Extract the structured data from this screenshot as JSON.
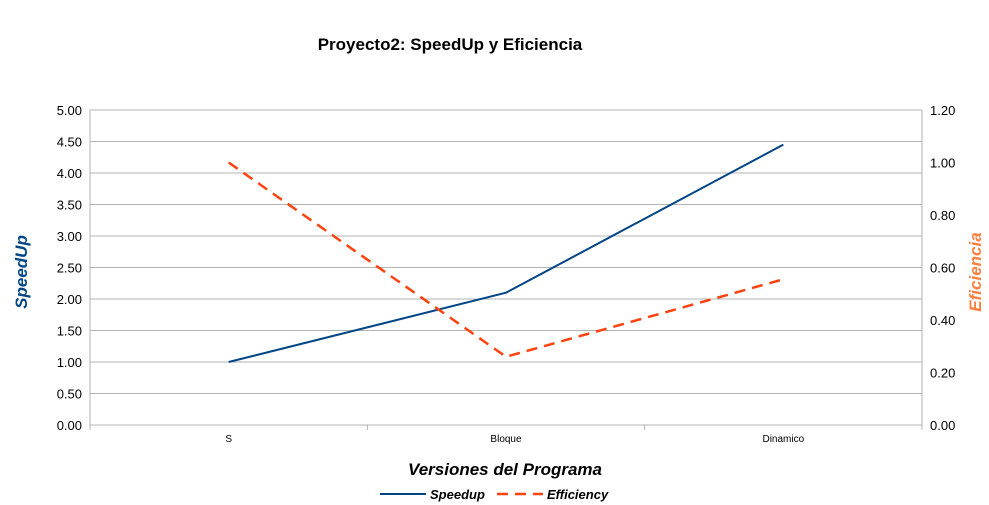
{
  "chart_data": {
    "type": "line",
    "title": "Proyecto2: SpeedUp y Eficiencia",
    "xlabel": "Versiones del Programa",
    "ylabel": "SpeedUp",
    "y2label": "Eficiencia",
    "categories": [
      "S",
      "Bloque",
      "Dinamico"
    ],
    "ylim": [
      0,
      5
    ],
    "y_ticks": [
      "0.00",
      "0.50",
      "1.00",
      "1.50",
      "2.00",
      "2.50",
      "3.00",
      "3.50",
      "4.00",
      "4.50",
      "5.00"
    ],
    "y2lim": [
      0,
      1.2
    ],
    "y2_ticks": [
      "0.00",
      "0.20",
      "0.40",
      "0.60",
      "0.80",
      "1.00",
      "1.20"
    ],
    "grid": true,
    "legend_position": "bottom",
    "series": [
      {
        "name": "Speedup",
        "axis": "left",
        "values": [
          1.0,
          2.1,
          4.45
        ],
        "color": "#004586",
        "style": "solid"
      },
      {
        "name": "Efficiency",
        "axis": "right",
        "values": [
          1.0,
          0.26,
          0.555
        ],
        "color": "#ff420e",
        "style": "dashed"
      }
    ],
    "colors": {
      "left_axis_title": "#004586",
      "right_axis_title": "#ff7f3f",
      "grid": "#b3b3b3"
    }
  }
}
